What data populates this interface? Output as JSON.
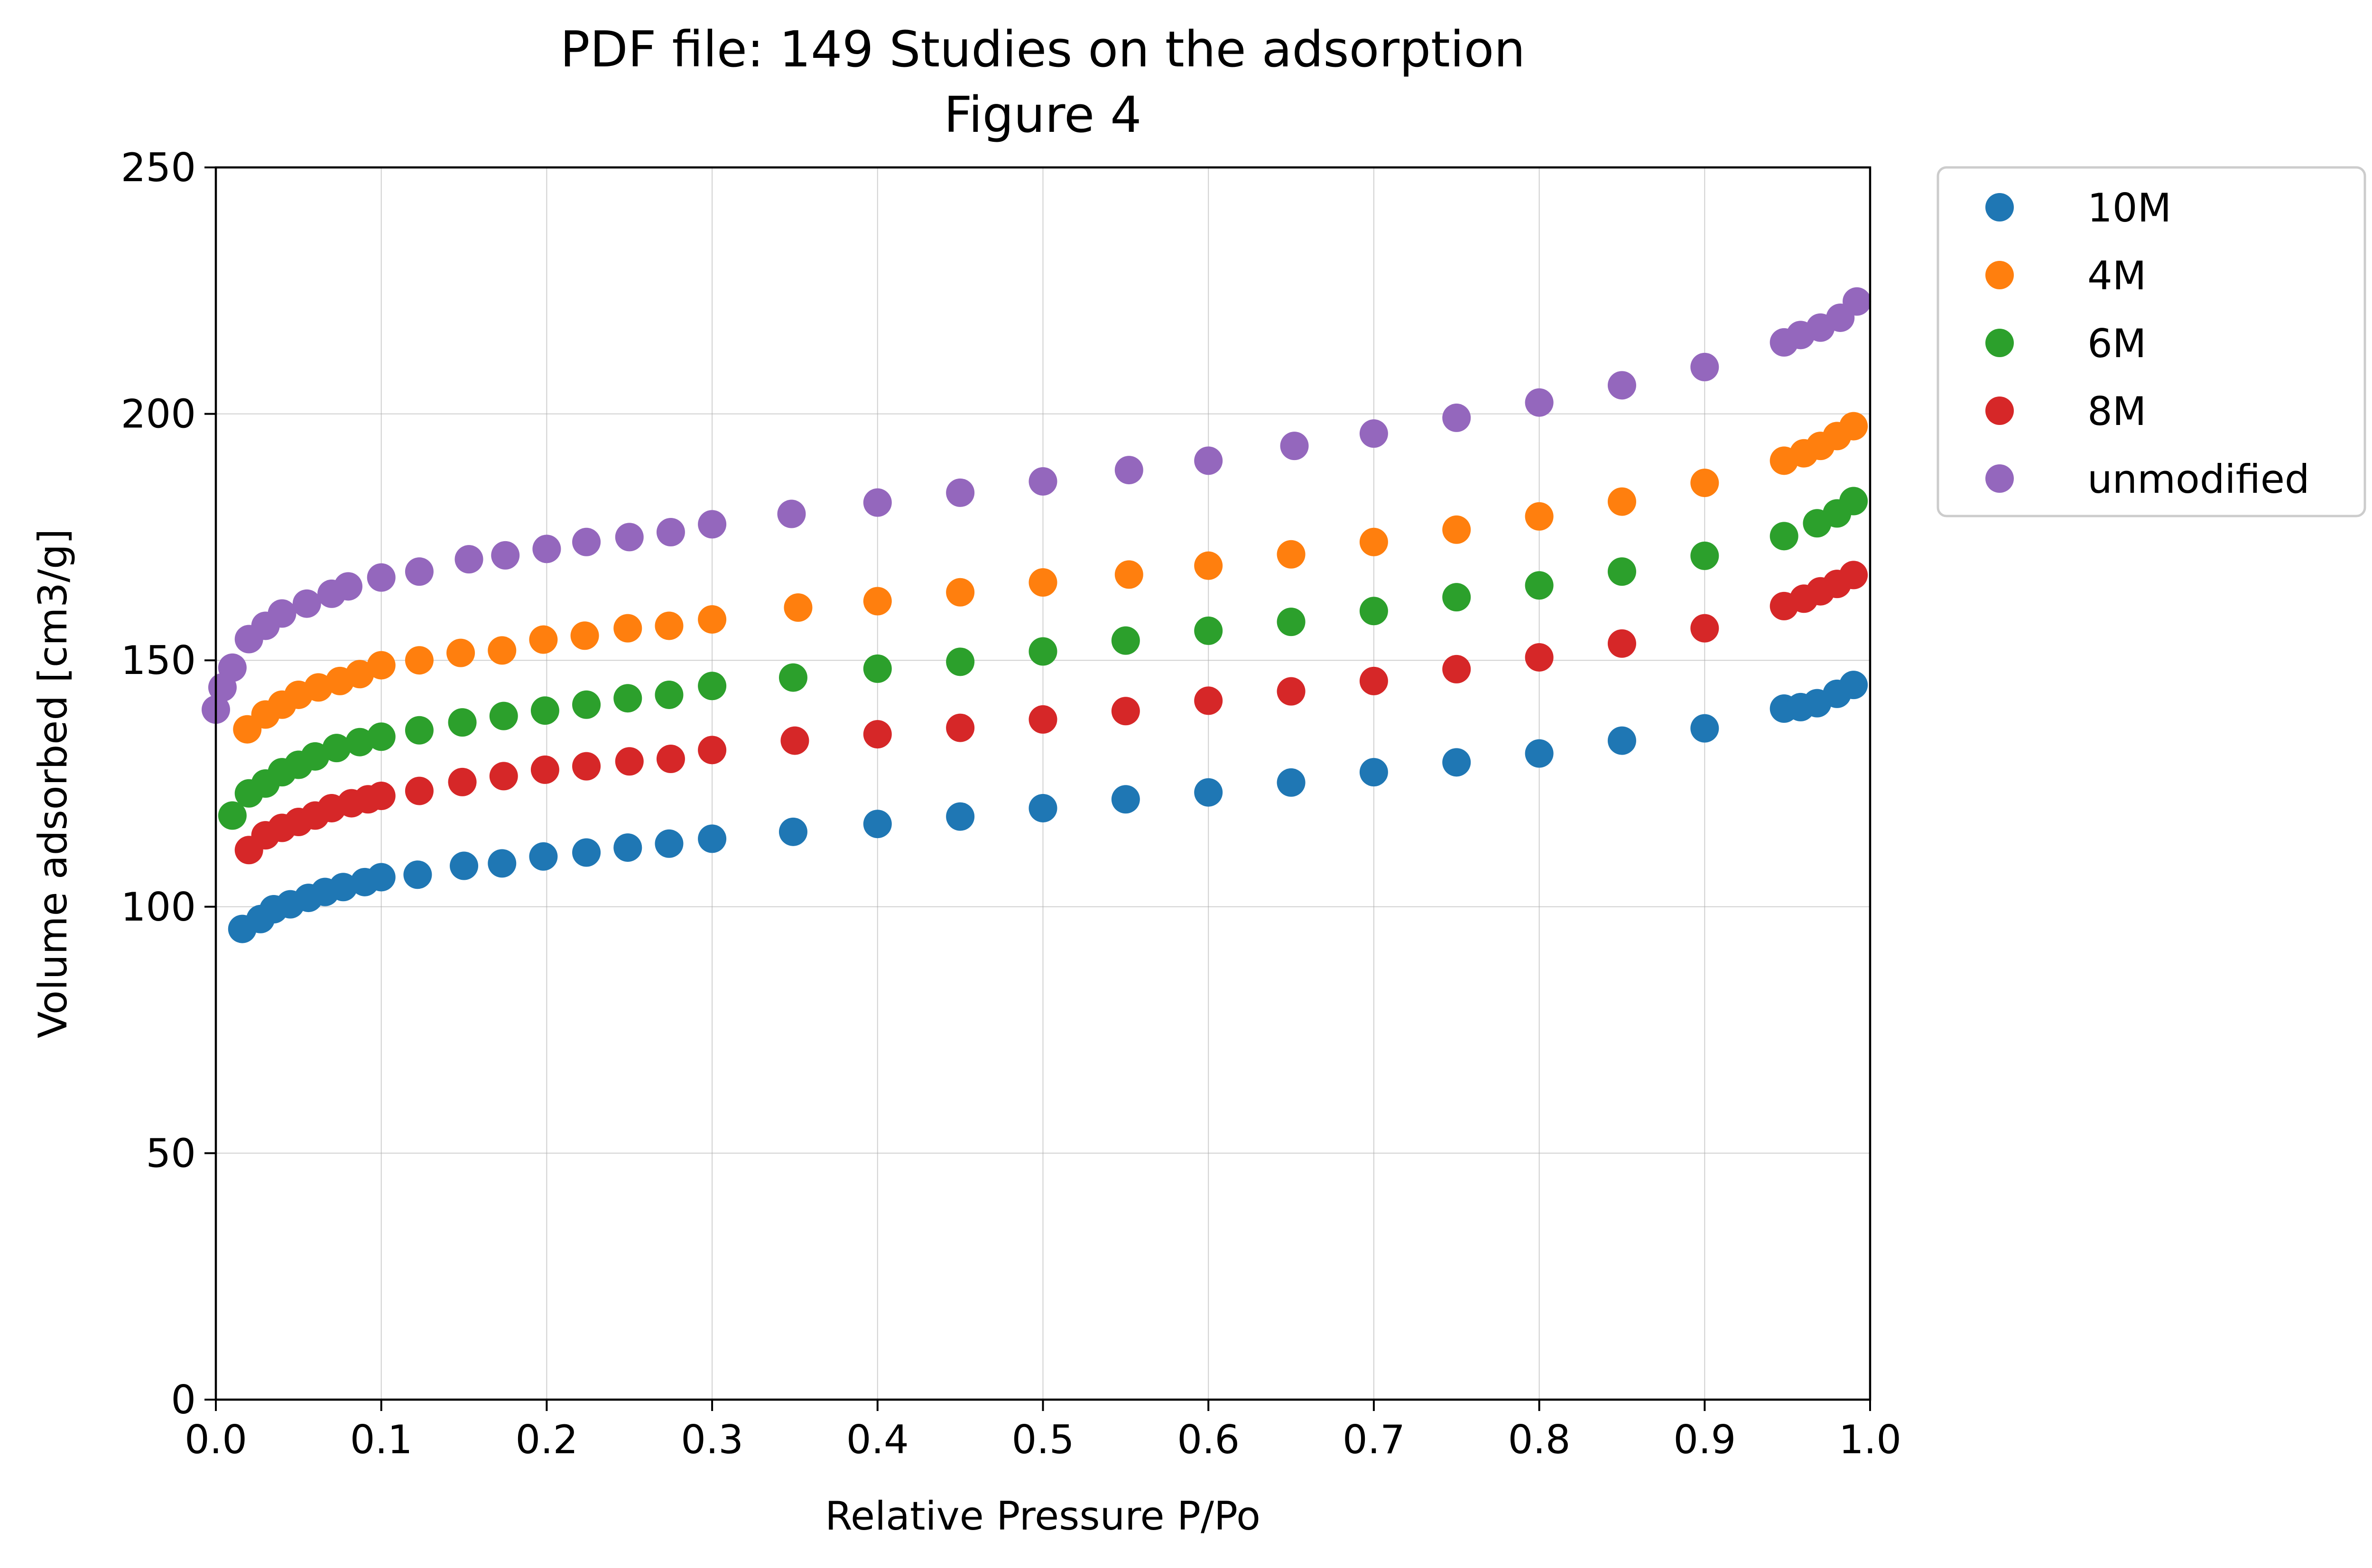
{
  "chart_data": {
    "type": "scatter",
    "title": "PDF file: 149 Studies on the adsorption",
    "subtitle": "Figure 4",
    "xlabel": "Relative Pressure P/Po",
    "ylabel": "Volume adsorbed [cm3/g]",
    "xlim": [
      0,
      1
    ],
    "ylim": [
      0,
      250
    ],
    "xticks": [
      "0.0",
      "0.1",
      "0.2",
      "0.3",
      "0.4",
      "0.5",
      "0.6",
      "0.7",
      "0.8",
      "0.9",
      "1.0"
    ],
    "yticks": [
      "0",
      "50",
      "100",
      "150",
      "200",
      "250"
    ],
    "grid": true,
    "legend_position": "outside-top-right",
    "series": [
      {
        "name": "10M",
        "color": "#1f77b4",
        "points": [
          [
            0.016,
            95.5
          ],
          [
            0.027,
            97.5
          ],
          [
            0.035,
            99.5
          ],
          [
            0.045,
            100.5
          ],
          [
            0.056,
            101.8
          ],
          [
            0.066,
            103
          ],
          [
            0.077,
            104
          ],
          [
            0.09,
            105
          ],
          [
            0.1,
            106
          ],
          [
            0.122,
            106.5
          ],
          [
            0.15,
            108.3
          ],
          [
            0.173,
            108.8
          ],
          [
            0.198,
            110.2
          ],
          [
            0.224,
            111
          ],
          [
            0.249,
            112
          ],
          [
            0.274,
            112.8
          ],
          [
            0.3,
            113.8
          ],
          [
            0.349,
            115.2
          ],
          [
            0.4,
            116.8
          ],
          [
            0.45,
            118.3
          ],
          [
            0.5,
            120
          ],
          [
            0.55,
            121.8
          ],
          [
            0.6,
            123.2
          ],
          [
            0.65,
            125.2
          ],
          [
            0.7,
            127.3
          ],
          [
            0.75,
            129.3
          ],
          [
            0.8,
            131.1
          ],
          [
            0.85,
            133.7
          ],
          [
            0.9,
            136.2
          ],
          [
            0.948,
            140.2
          ],
          [
            0.958,
            140.5
          ],
          [
            0.968,
            141.3
          ],
          [
            0.98,
            143.2
          ],
          [
            0.99,
            145
          ]
        ]
      },
      {
        "name": "4M",
        "color": "#ff7f0e",
        "points": [
          [
            0.019,
            136
          ],
          [
            0.03,
            139
          ],
          [
            0.04,
            141
          ],
          [
            0.05,
            143
          ],
          [
            0.062,
            144.5
          ],
          [
            0.075,
            145.8
          ],
          [
            0.087,
            147.2
          ],
          [
            0.1,
            149
          ],
          [
            0.123,
            150
          ],
          [
            0.148,
            151.5
          ],
          [
            0.173,
            152
          ],
          [
            0.198,
            154.2
          ],
          [
            0.223,
            155
          ],
          [
            0.249,
            156.5
          ],
          [
            0.274,
            157
          ],
          [
            0.3,
            158.3
          ],
          [
            0.352,
            160.7
          ],
          [
            0.4,
            162
          ],
          [
            0.45,
            163.8
          ],
          [
            0.5,
            165.8
          ],
          [
            0.552,
            167.4
          ],
          [
            0.6,
            169.2
          ],
          [
            0.65,
            171.5
          ],
          [
            0.7,
            174
          ],
          [
            0.75,
            176.5
          ],
          [
            0.8,
            179.2
          ],
          [
            0.85,
            182.2
          ],
          [
            0.9,
            186
          ],
          [
            0.948,
            190.5
          ],
          [
            0.96,
            192
          ],
          [
            0.97,
            193.5
          ],
          [
            0.98,
            195.5
          ],
          [
            0.99,
            197.5
          ]
        ]
      },
      {
        "name": "6M",
        "color": "#2ca02c",
        "points": [
          [
            0.01,
            118.5
          ],
          [
            0.02,
            123
          ],
          [
            0.03,
            125
          ],
          [
            0.04,
            127.3
          ],
          [
            0.05,
            128.8
          ],
          [
            0.06,
            130.5
          ],
          [
            0.073,
            132.2
          ],
          [
            0.087,
            133.4
          ],
          [
            0.1,
            134.5
          ],
          [
            0.123,
            135.8
          ],
          [
            0.149,
            137.4
          ],
          [
            0.174,
            138.7
          ],
          [
            0.199,
            139.8
          ],
          [
            0.224,
            141
          ],
          [
            0.249,
            142.3
          ],
          [
            0.274,
            143
          ],
          [
            0.3,
            144.8
          ],
          [
            0.349,
            146.5
          ],
          [
            0.4,
            148.3
          ],
          [
            0.45,
            149.7
          ],
          [
            0.5,
            151.8
          ],
          [
            0.55,
            154
          ],
          [
            0.6,
            156
          ],
          [
            0.65,
            157.8
          ],
          [
            0.7,
            160
          ],
          [
            0.75,
            162.8
          ],
          [
            0.8,
            165.2
          ],
          [
            0.85,
            168
          ],
          [
            0.9,
            171.2
          ],
          [
            0.948,
            175.2
          ],
          [
            0.968,
            177.8
          ],
          [
            0.98,
            179.8
          ],
          [
            0.99,
            182.3
          ]
        ]
      },
      {
        "name": "8M",
        "color": "#d62728",
        "points": [
          [
            0.02,
            111.5
          ],
          [
            0.03,
            114.5
          ],
          [
            0.04,
            116
          ],
          [
            0.05,
            117.2
          ],
          [
            0.06,
            118.5
          ],
          [
            0.07,
            120
          ],
          [
            0.082,
            121
          ],
          [
            0.092,
            121.8
          ],
          [
            0.1,
            122.5
          ],
          [
            0.123,
            123.5
          ],
          [
            0.149,
            125.3
          ],
          [
            0.174,
            126.5
          ],
          [
            0.199,
            127.8
          ],
          [
            0.224,
            128.5
          ],
          [
            0.25,
            129.5
          ],
          [
            0.275,
            130
          ],
          [
            0.3,
            131.8
          ],
          [
            0.35,
            133.7
          ],
          [
            0.4,
            135
          ],
          [
            0.45,
            136.3
          ],
          [
            0.5,
            138
          ],
          [
            0.55,
            139.7
          ],
          [
            0.6,
            141.8
          ],
          [
            0.65,
            143.7
          ],
          [
            0.7,
            145.8
          ],
          [
            0.75,
            148.2
          ],
          [
            0.8,
            150.6
          ],
          [
            0.85,
            153.4
          ],
          [
            0.9,
            156.5
          ],
          [
            0.948,
            161
          ],
          [
            0.96,
            162.5
          ],
          [
            0.97,
            164
          ],
          [
            0.98,
            165.5
          ],
          [
            0.99,
            167.3
          ]
        ]
      },
      {
        "name": "unmodified",
        "color": "#9467bd",
        "points": [
          [
            0.0,
            140
          ],
          [
            0.004,
            144.5
          ],
          [
            0.01,
            148.5
          ],
          [
            0.02,
            154.3
          ],
          [
            0.03,
            157
          ],
          [
            0.04,
            159.5
          ],
          [
            0.055,
            161.5
          ],
          [
            0.07,
            163.5
          ],
          [
            0.08,
            165
          ],
          [
            0.1,
            166.8
          ],
          [
            0.123,
            168
          ],
          [
            0.153,
            170.5
          ],
          [
            0.175,
            171.3
          ],
          [
            0.2,
            172.6
          ],
          [
            0.224,
            174
          ],
          [
            0.25,
            175
          ],
          [
            0.275,
            176
          ],
          [
            0.3,
            177.6
          ],
          [
            0.348,
            179.7
          ],
          [
            0.4,
            182
          ],
          [
            0.45,
            184
          ],
          [
            0.5,
            186.3
          ],
          [
            0.552,
            188.6
          ],
          [
            0.6,
            190.5
          ],
          [
            0.652,
            193.5
          ],
          [
            0.7,
            196
          ],
          [
            0.75,
            199.2
          ],
          [
            0.8,
            202.3
          ],
          [
            0.85,
            205.8
          ],
          [
            0.9,
            209.5
          ],
          [
            0.948,
            214.5
          ],
          [
            0.958,
            216
          ],
          [
            0.97,
            217.5
          ],
          [
            0.982,
            219.5
          ],
          [
            0.992,
            222.8
          ]
        ]
      }
    ]
  }
}
